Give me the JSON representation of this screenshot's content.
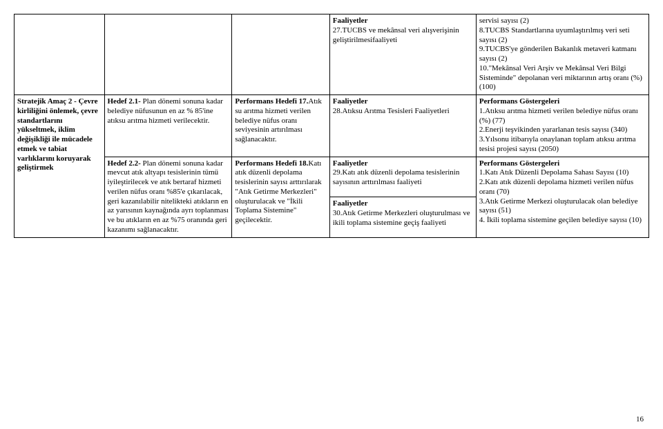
{
  "table": {
    "row0": {
      "c4": {
        "heading": "Faaliyetler",
        "text": "27.TUCBS ve mekânsal veri alışverişinin geliştirilmesifaaliyeti"
      },
      "c5": "servisi sayısı (2)\n8.TUCBS Standartlarına uyumlaştırılmış veri seti sayısı (2)\n9.TUCBS'ye gönderilen Bakanlık metaveri katmanı sayısı (2)\n10.\"Mekânsal Veri Arşiv ve Mekânsal Veri Bilgi Sisteminde\" depolanan veri miktarının artış oranı (%)(100)"
    },
    "row1": {
      "c1": "Stratejik Amaç 2 - Çevre kirliliğini önlemek, çevre standartlarını yükseltmek, iklim değişikliği ile mücadele etmek ve tabiat varlıklarını koruyarak geliştirmek",
      "c2": {
        "prefix": "Hedef 2.1-",
        "text": " Plan dönemi sonuna kadar belediye nüfusunun en az % 85'ine atıksu arıtma hizmeti verilecektir."
      },
      "c3": {
        "heading": "Performans Hedefi 17.",
        "text": "Atık su arıtma hizmeti verilen belediye nüfus oranı seviyesinin artırılması sağlanacaktır."
      },
      "c4": {
        "heading": "Faaliyetler",
        "text": "28.Atıksu Arıtma Tesisleri Faaliyetleri"
      },
      "c5": {
        "heading": "Performans Göstergeleri",
        "text": "1.Atıksu arıtma hizmeti verilen belediye nüfus oranı (%) (77)\n2.Enerji teşvikinden yararlanan tesis sayısı (340)\n3.Yılsonu itibarıyla onaylanan toplam atıksu arıtma tesisi projesi sayısı (2050)"
      }
    },
    "row2": {
      "c2": {
        "prefix": "Hedef 2.2-",
        "text": " Plan dönemi sonuna kadar mevcut atık altyapı tesislerinin tümü iyileştirilecek ve atık bertaraf hizmeti verilen nüfus oranı %85'e çıkarılacak, geri kazanılabilir nitelikteki atıkların en az yarısının kaynağında ayrı toplanması ve bu atıkların en az %75 oranında geri kazanımı sağlanacaktır."
      },
      "c3": {
        "heading": "Performans Hedefi 18.",
        "text": "Katı atık düzenli depolama tesislerinin sayısı arttırılarak \"Atık Getirme Merkezleri\" oluşturulacak ve \"İkili Toplama Sistemine\" geçilecektir."
      },
      "c4a": {
        "heading": "Faaliyetler",
        "text": "29.Katı atık düzenli depolama tesislerinin sayısının arttırılması faaliyeti"
      },
      "c4b": {
        "heading": "Faaliyetler",
        "text": "30.Atık Getirme Merkezleri oluşturulması ve ikili toplama sistemine geçiş faaliyeti"
      },
      "c5": {
        "heading": "Performans Göstergeleri",
        "text": "1.Katı Atık Düzenli Depolama Sahası Sayısı (10)\n2.Katı atık düzenli depolama hizmeti verilen nüfus oranı (70)\n3.Atık Getirme Merkezi oluşturulacak olan belediye sayısı (51)\n4. İkili toplama sistemine geçilen belediye sayısı (10)"
      }
    }
  },
  "page_number": "16"
}
